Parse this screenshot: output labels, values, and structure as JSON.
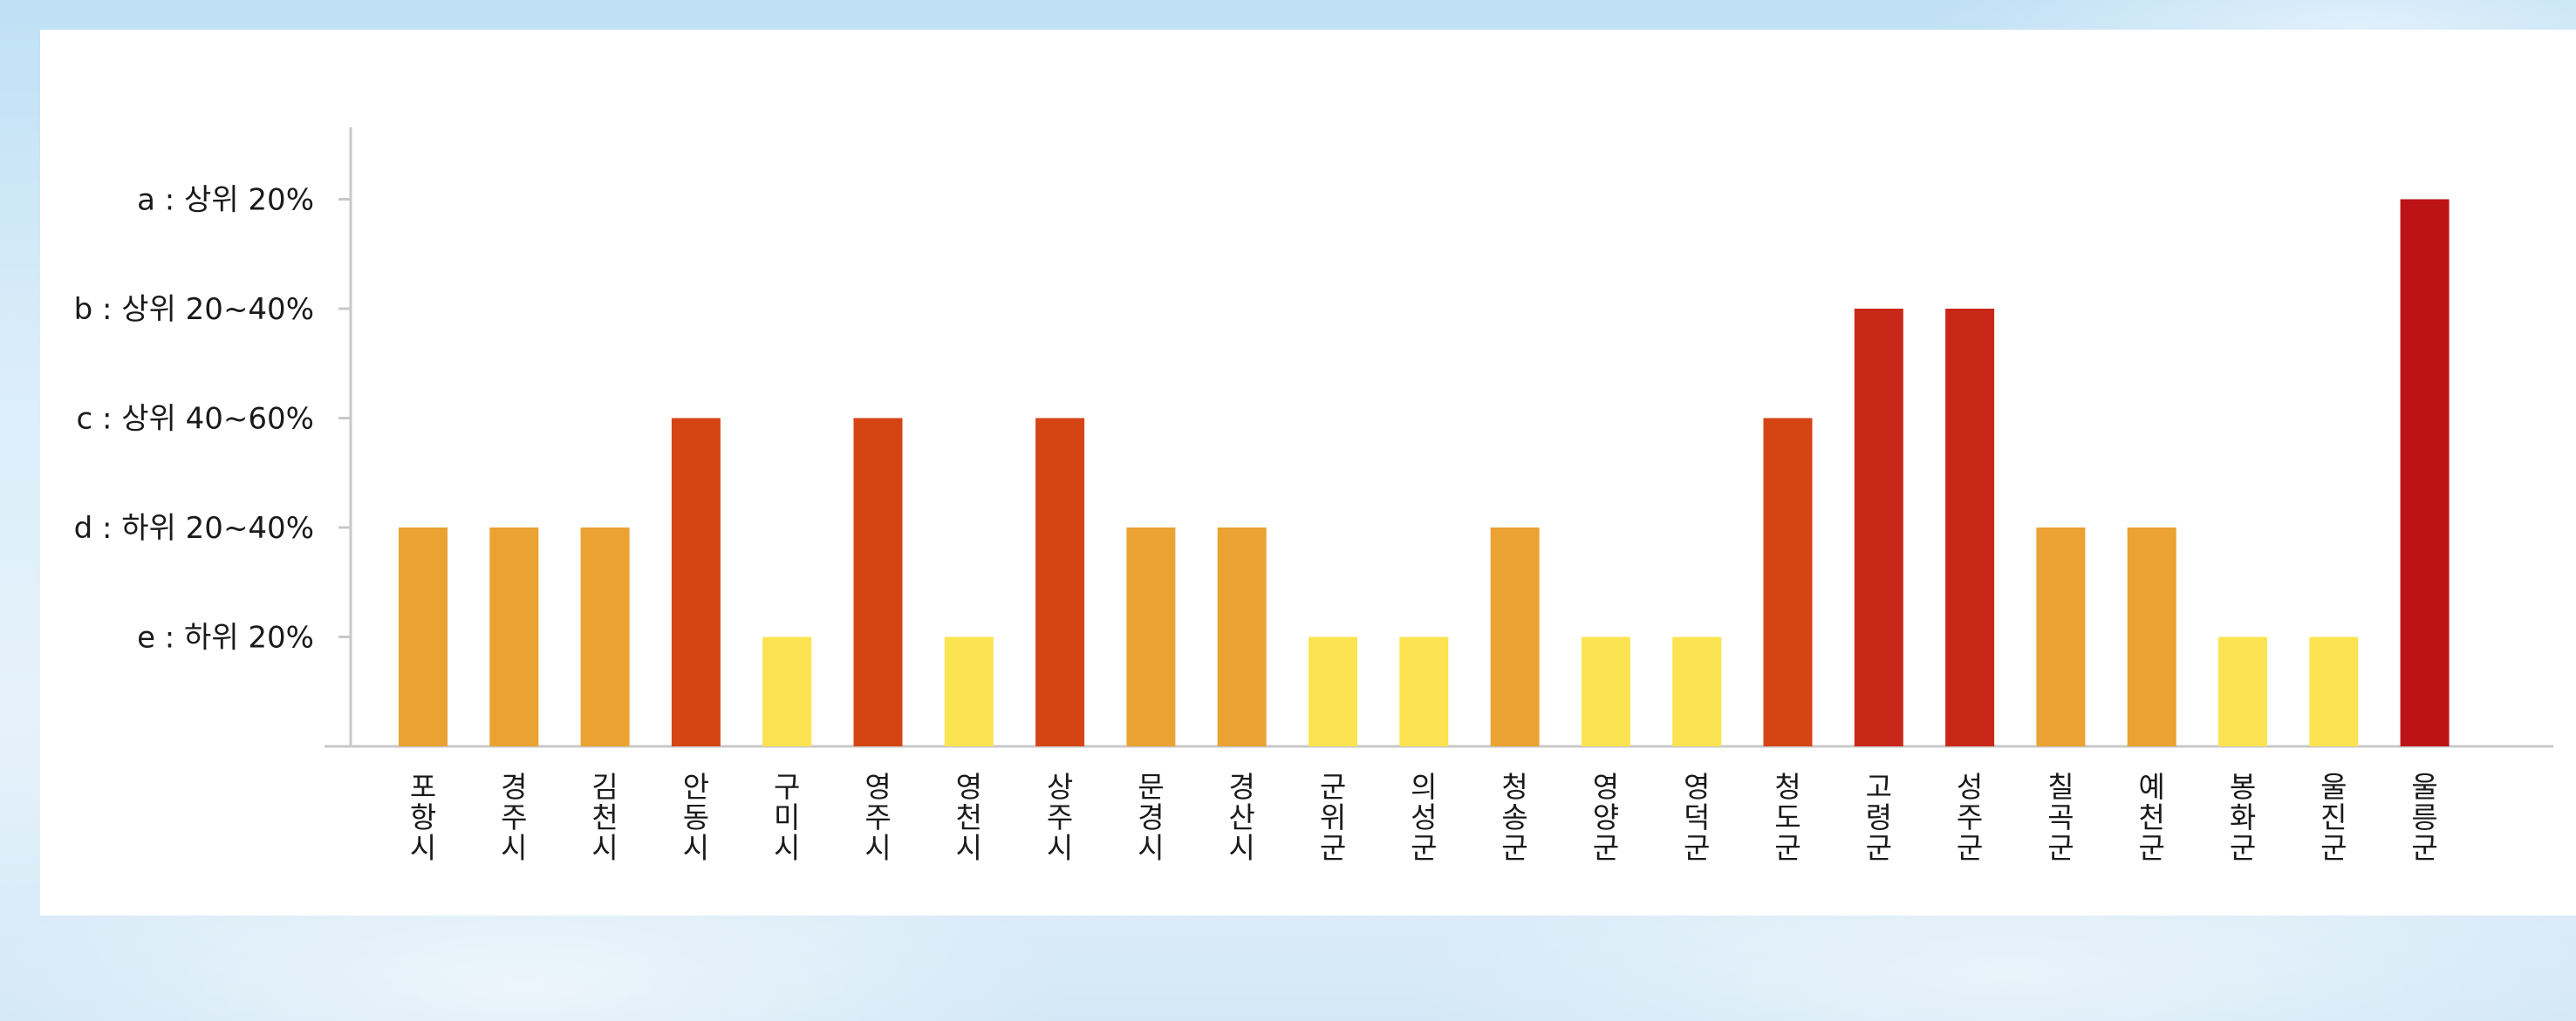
{
  "chart_data": {
    "type": "bar",
    "title": "",
    "xlabel": "",
    "ylabel": "",
    "y_levels": [
      "e : 하위 20%",
      "d : 하위 20~40%",
      "c : 상위 40~60%",
      "b : 상위 20~40%",
      "a : 상위 20%"
    ],
    "ylim": [
      0,
      5
    ],
    "grid": false,
    "legend": "none",
    "categories": [
      "포항시",
      "경주시",
      "김천시",
      "안동시",
      "구미시",
      "영주시",
      "영천시",
      "상주시",
      "문경시",
      "경산시",
      "군위군",
      "의성군",
      "청송군",
      "영양군",
      "영덕군",
      "청도군",
      "고령군",
      "성주군",
      "칠곡군",
      "예천군",
      "봉화군",
      "울진군",
      "울릉군"
    ],
    "values": [
      2,
      2,
      2,
      3,
      1,
      3,
      1,
      3,
      2,
      2,
      1,
      1,
      2,
      1,
      1,
      3,
      4,
      4,
      2,
      2,
      1,
      1,
      5
    ],
    "level_colors": {
      "1": "#fce351",
      "2": "#eaa233",
      "3": "#d54514",
      "4": "#c92718",
      "5": "#bb1316"
    },
    "axis_color": "#c8c8c8"
  }
}
